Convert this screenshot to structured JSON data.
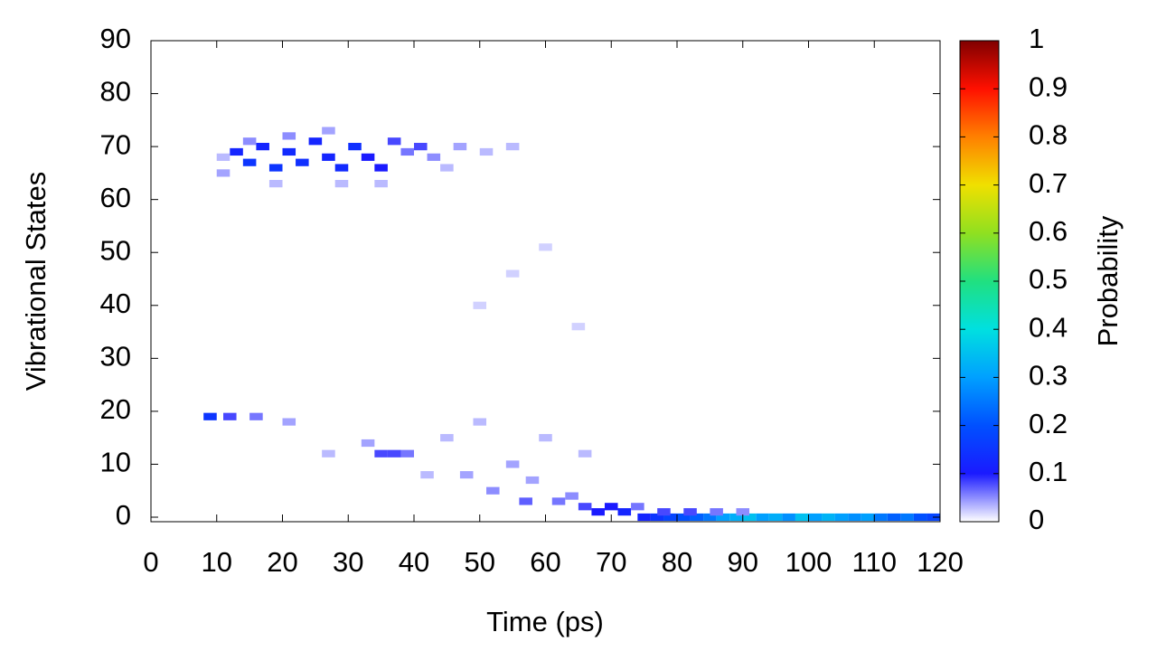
{
  "chart_data": {
    "type": "heatmap",
    "x_label": "Time (ps)",
    "y_label": "Vibrational States",
    "colorbar_label": "Probability",
    "xlim": [
      0,
      120
    ],
    "xticks": [
      0,
      10,
      20,
      30,
      40,
      50,
      60,
      70,
      80,
      90,
      100,
      110,
      120
    ],
    "ylim": [
      0,
      90
    ],
    "yticks": [
      0,
      10,
      20,
      30,
      40,
      50,
      60,
      70,
      80,
      90
    ],
    "clim": [
      0,
      1
    ],
    "cticks": [
      0,
      0.1,
      0.2,
      0.3,
      0.4,
      0.5,
      0.6,
      0.7,
      0.8,
      0.9,
      1
    ],
    "colorscale": [
      "#ffffff",
      "#1a1aff",
      "#0050ff",
      "#00a0ff",
      "#00e0e0",
      "#20e080",
      "#90e020",
      "#f0e000",
      "#ff8000",
      "#ff1000",
      "#800000"
    ],
    "cells": {
      "x": [
        13,
        15,
        17,
        19,
        21,
        23,
        25,
        27,
        29,
        31,
        33,
        35,
        37,
        39,
        41,
        43,
        47,
        51,
        55,
        11,
        11,
        15,
        21,
        27,
        19,
        29,
        35,
        45,
        60,
        55,
        50,
        65,
        9,
        12,
        16,
        21,
        33,
        35,
        37,
        39,
        27,
        45,
        50,
        55,
        48,
        52,
        58,
        62,
        57,
        64,
        66,
        68,
        70,
        72,
        74,
        66,
        42,
        60,
        75,
        77,
        79,
        81,
        83,
        85,
        87,
        89,
        91,
        93,
        95,
        97,
        99,
        101,
        103,
        105,
        107,
        109,
        111,
        113,
        115,
        117,
        119,
        78,
        82,
        86,
        90
      ],
      "y": [
        69,
        67,
        70,
        66,
        69,
        67,
        71,
        68,
        66,
        70,
        68,
        66,
        71,
        69,
        70,
        68,
        70,
        69,
        70,
        65,
        68,
        71,
        72,
        73,
        63,
        63,
        63,
        66,
        51,
        46,
        40,
        36,
        19,
        19,
        19,
        18,
        14,
        12,
        12,
        12,
        12,
        15,
        18,
        10,
        8,
        5,
        7,
        3,
        3,
        4,
        2,
        1,
        2,
        1,
        2,
        12,
        8,
        15,
        0,
        0,
        0,
        0,
        0,
        0,
        0,
        0,
        0,
        0,
        0,
        0,
        0,
        0,
        0,
        0,
        0,
        0,
        0,
        0,
        0,
        0,
        0,
        1,
        1,
        1,
        1
      ],
      "values": [
        0.12,
        0.15,
        0.12,
        0.15,
        0.13,
        0.14,
        0.12,
        0.12,
        0.13,
        0.14,
        0.1,
        0.1,
        0.08,
        0.06,
        0.08,
        0.05,
        0.04,
        0.03,
        0.03,
        0.04,
        0.03,
        0.05,
        0.05,
        0.04,
        0.03,
        0.03,
        0.03,
        0.03,
        0.02,
        0.02,
        0.02,
        0.02,
        0.15,
        0.08,
        0.06,
        0.04,
        0.04,
        0.08,
        0.08,
        0.06,
        0.03,
        0.03,
        0.03,
        0.04,
        0.04,
        0.05,
        0.04,
        0.06,
        0.07,
        0.05,
        0.08,
        0.1,
        0.1,
        0.12,
        0.06,
        0.03,
        0.03,
        0.03,
        0.12,
        0.15,
        0.18,
        0.2,
        0.22,
        0.25,
        0.3,
        0.32,
        0.35,
        0.3,
        0.32,
        0.28,
        0.35,
        0.3,
        0.33,
        0.3,
        0.28,
        0.3,
        0.25,
        0.22,
        0.25,
        0.2,
        0.18,
        0.08,
        0.08,
        0.06,
        0.05
      ]
    }
  }
}
